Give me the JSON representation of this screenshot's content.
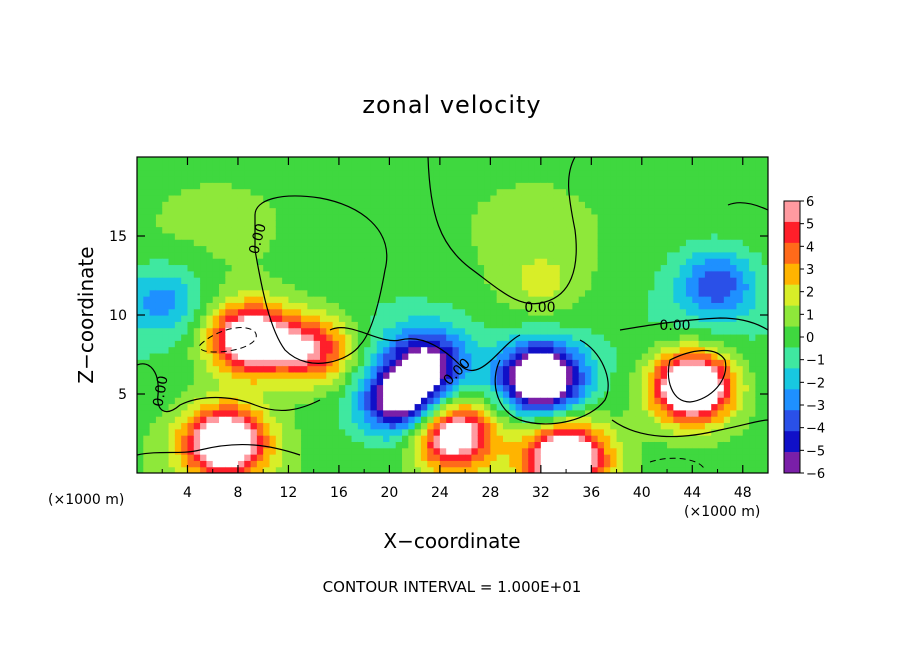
{
  "chart_data": {
    "type": "heatmap",
    "title": "zonal velocity",
    "xlabel": "X−coordinate",
    "ylabel": "Z−coordinate",
    "x_unit": "(×1000 m)",
    "z_unit": "(×1000 m)",
    "xlim": [
      0,
      50
    ],
    "ylim": [
      0,
      20
    ],
    "x_ticks": [
      4,
      8,
      12,
      16,
      20,
      24,
      28,
      32,
      36,
      40,
      44,
      48
    ],
    "y_ticks": [
      5,
      10,
      15
    ],
    "colorbar": {
      "ticks": [
        6,
        5,
        4,
        3,
        2,
        1,
        0,
        -1,
        -2,
        -3,
        -4,
        -5,
        -6
      ],
      "tick_labels": [
        "6",
        "5",
        "4",
        "3",
        "2",
        "1",
        "0",
        "−1",
        "−2",
        "−3",
        "−4",
        "−5",
        "−6"
      ],
      "range": [
        -6,
        6
      ]
    },
    "contour_labels": [
      "0.00",
      "0.00",
      "0.00",
      "0.00",
      "0.00"
    ],
    "footer": "CONTOUR INTERVAL = 1.000E+01",
    "features": [
      {
        "x": 9,
        "z": 8.5,
        "sign": 1,
        "peak": 9
      },
      {
        "x": 14,
        "z": 7.8,
        "sign": 1,
        "peak": 6
      },
      {
        "x": 7,
        "z": 2,
        "sign": 1,
        "peak": 9
      },
      {
        "x": 21,
        "z": 4.5,
        "sign": -1,
        "peak": 7
      },
      {
        "x": 23,
        "z": 7,
        "sign": -1,
        "peak": 6
      },
      {
        "x": 25,
        "z": 2.5,
        "sign": 1,
        "peak": 8
      },
      {
        "x": 32,
        "z": 6,
        "sign": -1,
        "peak": 10
      },
      {
        "x": 34,
        "z": 1,
        "sign": 1,
        "peak": 9
      },
      {
        "x": 44,
        "z": 5.5,
        "sign": 1,
        "peak": 11
      },
      {
        "x": 46,
        "z": 12,
        "sign": -1,
        "peak": 4
      },
      {
        "x": 2,
        "z": 11,
        "sign": -1,
        "peak": 3
      },
      {
        "x": 32,
        "z": 12,
        "sign": 1,
        "peak": 1.5
      }
    ]
  }
}
